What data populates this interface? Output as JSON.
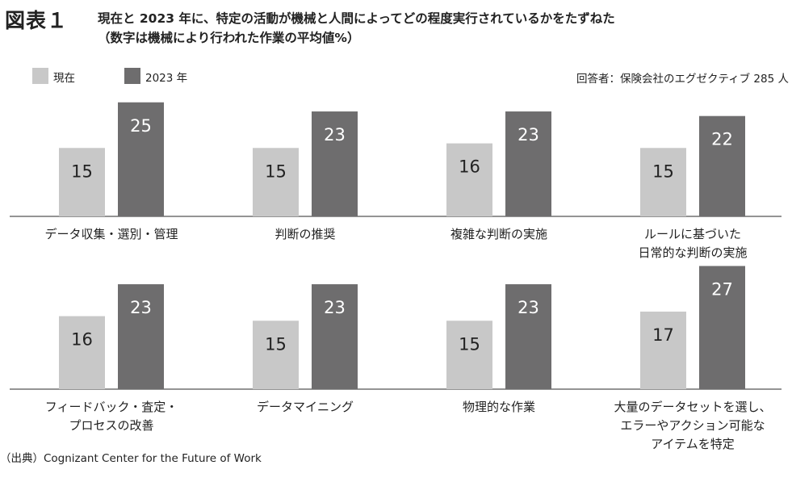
{
  "header": {
    "figure_label": "図表１",
    "title_line1": "現在と 2023 年に、特定の活動が機械と人間によってどの程度実行されているかをたずねた",
    "title_line2": "（数字は機械により行われた作業の平均値%）"
  },
  "respondents": "回答者：保険会社のエグゼクティブ 285 人",
  "source": "（出典）Cognizant Center for the Future of Work",
  "colors": {
    "current": "#c8c8c8",
    "future": "#6e6d6e",
    "axis": "#555555",
    "value_current": "#222222",
    "value_future": "#ffffff"
  },
  "chart_data": {
    "type": "bar",
    "legend_placement": "top-left",
    "grid": false,
    "series": [
      {
        "name": "現在",
        "values": [
          15,
          15,
          16,
          15,
          16,
          15,
          15,
          17
        ]
      },
      {
        "name": "2023 年",
        "values": [
          25,
          23,
          23,
          22,
          23,
          23,
          23,
          27
        ]
      }
    ],
    "categories": [
      [
        "データ収集・選別・管理"
      ],
      [
        "判断の推奨"
      ],
      [
        "複雑な判断の実施"
      ],
      [
        "ルールに基づいた",
        "日常的な判断の実施"
      ],
      [
        "フィードバック・査定・",
        "プロセスの改善"
      ],
      [
        "データマイニング"
      ],
      [
        "物理的な作業"
      ],
      [
        "大量のデータセットを選し、",
        "エラーやアクション可能な",
        "アイテムを特定"
      ]
    ]
  }
}
